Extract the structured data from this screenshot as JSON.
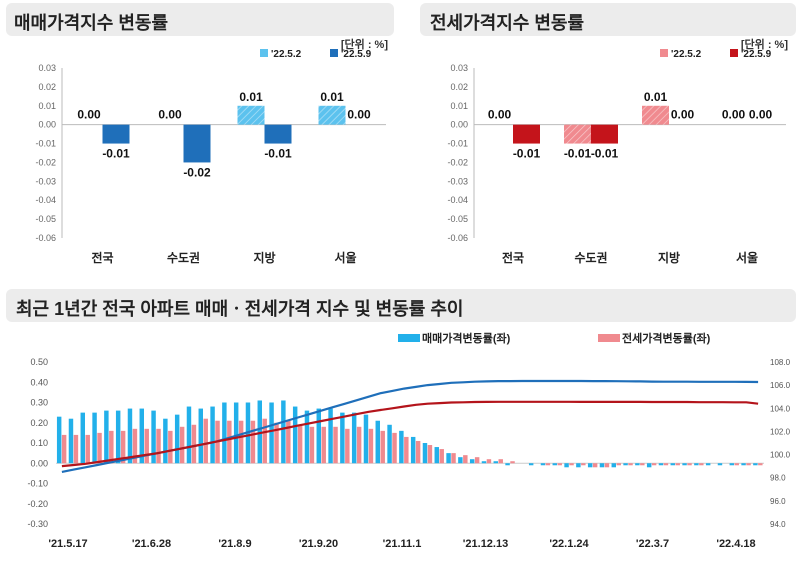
{
  "colors": {
    "sale_light": "#5cc2ee",
    "sale_dark": "#1f6fba",
    "jeonse_light": "#f08a8f",
    "jeonse_dark": "#c4141b",
    "sale_line": "#1f6fba",
    "jeonse_line": "#b4141b",
    "sale_bar": "#22b0ea",
    "jeonse_bar": "#f08a8f",
    "title_bg": "#ececec"
  },
  "panel_sale": {
    "title": "매매가격지수 변동률",
    "unit": "[단위 : %]"
  },
  "panel_jeonse": {
    "title": "전세가격지수 변동률",
    "unit": "[단위 : %]"
  },
  "panel_trend": {
    "title": "최근 1년간 전국 아파트 매매ㆍ전세가격 지수 및 변동률 추이"
  },
  "chart_data": [
    {
      "type": "bar",
      "categories": [
        "전국",
        "수도권",
        "지방",
        "서울"
      ],
      "series": [
        {
          "name": "'22.5.2",
          "values": [
            0.0,
            0.0,
            0.01,
            0.01
          ],
          "labels": [
            "0.00",
            "0.00",
            "0.01",
            "0.01"
          ]
        },
        {
          "name": "'22.5.9",
          "values": [
            -0.01,
            -0.02,
            -0.01,
            0.0
          ],
          "labels": [
            "-0.01",
            "-0.02",
            "-0.01",
            "0.00"
          ]
        }
      ],
      "ylim": [
        -0.06,
        0.03
      ],
      "yticks": [
        "0.03",
        "0.02",
        "0.01",
        "0.00",
        "-0.01",
        "-0.02",
        "-0.03",
        "-0.04",
        "-0.05",
        "-0.06"
      ],
      "legend": "top-right"
    },
    {
      "type": "bar",
      "categories": [
        "전국",
        "수도권",
        "지방",
        "서울"
      ],
      "series": [
        {
          "name": "'22.5.2",
          "values": [
            0.0,
            -0.01,
            0.01,
            0.0
          ],
          "labels": [
            "0.00",
            "-0.01",
            "0.01",
            "0.00"
          ]
        },
        {
          "name": "'22.5.9",
          "values": [
            -0.01,
            -0.01,
            0.0,
            0.0
          ],
          "labels": [
            "-0.01",
            "-0.01",
            "0.00",
            "0.00"
          ]
        }
      ],
      "ylim": [
        -0.06,
        0.03
      ],
      "yticks": [
        "0.03",
        "0.02",
        "0.01",
        "0.00",
        "-0.01",
        "-0.02",
        "-0.03",
        "-0.04",
        "-0.05",
        "-0.06"
      ],
      "legend": "top-right"
    },
    {
      "type": "bar",
      "x_ticks": [
        "'21.5.17",
        "'21.6.28",
        "'21.8.9",
        "'21.9.20",
        "'21.11.1",
        "'21.12.13",
        "'22.1.24",
        "'22.3.7",
        "'22.4.18"
      ],
      "y_left_ticks": [
        "0.50",
        "0.40",
        "0.30",
        "0.20",
        "0.10",
        "0.00",
        "-0.10",
        "-0.20",
        "-0.30"
      ],
      "y_right_ticks": [
        "108.0",
        "106.0",
        "104.0",
        "102.0",
        "100.0",
        "98.0",
        "96.0",
        "94.0"
      ],
      "ylim_left": [
        -0.3,
        0.5
      ],
      "ylim_right": [
        94.0,
        108.0
      ],
      "bar_series": [
        {
          "name": "매매가격변동률(좌)",
          "values": [
            0.23,
            0.22,
            0.25,
            0.25,
            0.26,
            0.26,
            0.27,
            0.27,
            0.26,
            0.22,
            0.24,
            0.28,
            0.27,
            0.28,
            0.3,
            0.3,
            0.3,
            0.31,
            0.3,
            0.31,
            0.28,
            0.26,
            0.27,
            0.27,
            0.25,
            0.25,
            0.24,
            0.21,
            0.19,
            0.16,
            0.13,
            0.1,
            0.08,
            0.05,
            0.03,
            0.02,
            0.01,
            0.01,
            -0.01,
            0.0,
            -0.01,
            -0.01,
            -0.01,
            -0.02,
            -0.02,
            -0.02,
            -0.02,
            -0.02,
            -0.01,
            -0.01,
            -0.02,
            -0.01,
            -0.01,
            -0.01,
            -0.01,
            -0.01,
            -0.01,
            -0.01,
            -0.01,
            -0.01
          ]
        },
        {
          "name": "전세가격변동률(좌)",
          "values": [
            0.14,
            0.14,
            0.14,
            0.15,
            0.16,
            0.16,
            0.17,
            0.17,
            0.17,
            0.16,
            0.18,
            0.19,
            0.22,
            0.21,
            0.21,
            0.21,
            0.21,
            0.22,
            0.2,
            0.21,
            0.19,
            0.18,
            0.18,
            0.18,
            0.17,
            0.18,
            0.17,
            0.16,
            0.15,
            0.13,
            0.11,
            0.09,
            0.07,
            0.05,
            0.04,
            0.03,
            0.02,
            0.02,
            0.01,
            0.0,
            0.0,
            -0.01,
            -0.01,
            -0.01,
            -0.01,
            -0.02,
            -0.02,
            -0.01,
            -0.01,
            -0.01,
            -0.01,
            -0.01,
            -0.01,
            -0.01,
            -0.01,
            0.0,
            0.0,
            -0.01,
            -0.01,
            -0.01
          ]
        }
      ],
      "line_series": [
        {
          "values": [
            98.5,
            98.7,
            98.9,
            99.1,
            99.3,
            99.5,
            99.7,
            99.9,
            100.1,
            100.3,
            100.5,
            100.7,
            100.9,
            101.1,
            101.4,
            101.7,
            102.0,
            102.3,
            102.6,
            102.9,
            103.2,
            103.5,
            103.8,
            104.1,
            104.4,
            104.7,
            105.0,
            105.3,
            105.5,
            105.7,
            105.85,
            106.0,
            106.1,
            106.2,
            106.25,
            106.3,
            106.32,
            106.35,
            106.35,
            106.36,
            106.36,
            106.36,
            106.36,
            106.36,
            106.36,
            106.35,
            106.35,
            106.34,
            106.33,
            106.32,
            106.31,
            106.3,
            106.3,
            106.3,
            106.29,
            106.29,
            106.29,
            106.29,
            106.28,
            106.27
          ]
        },
        {
          "values": [
            99.0,
            99.1,
            99.2,
            99.35,
            99.5,
            99.65,
            99.8,
            99.95,
            100.1,
            100.3,
            100.5,
            100.7,
            100.9,
            101.1,
            101.3,
            101.5,
            101.7,
            101.9,
            102.1,
            102.3,
            102.5,
            102.7,
            102.9,
            103.1,
            103.3,
            103.5,
            103.7,
            103.85,
            104.0,
            104.15,
            104.3,
            104.4,
            104.45,
            104.5,
            104.52,
            104.54,
            104.55,
            104.56,
            104.56,
            104.56,
            104.56,
            104.56,
            104.56,
            104.56,
            104.55,
            104.55,
            104.55,
            104.55,
            104.55,
            104.55,
            104.54,
            104.54,
            104.54,
            104.54,
            104.53,
            104.53,
            104.53,
            104.52,
            104.52,
            104.4
          ]
        }
      ],
      "legend": "top-right"
    }
  ]
}
